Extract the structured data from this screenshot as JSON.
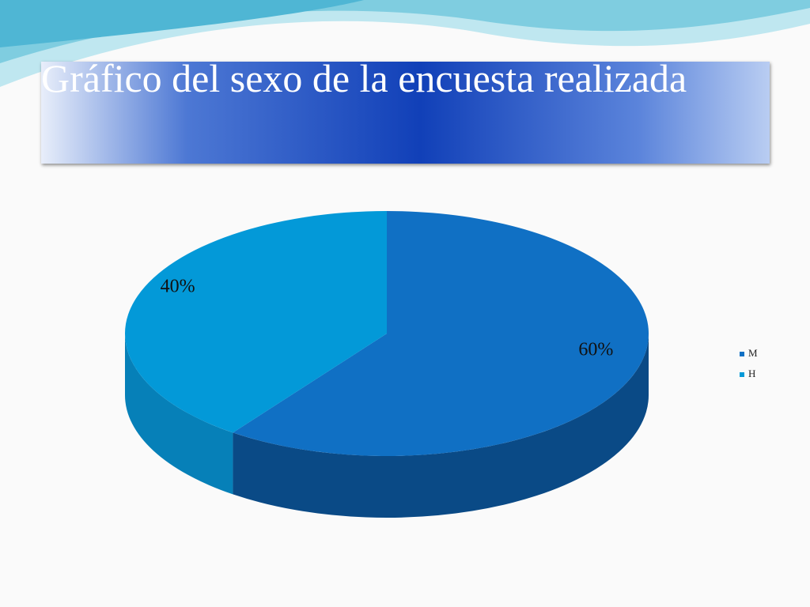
{
  "chart_data": {
    "type": "pie3d",
    "title": "Gráfico del sexo de la encuesta realizada",
    "categories": [
      "M",
      "H"
    ],
    "values": [
      60,
      40
    ],
    "value_labels": [
      "60%",
      "40%"
    ],
    "colors": [
      "#1070c4",
      "#0399d8"
    ],
    "side_colors": [
      "#0a4a86",
      "#0680b8"
    ],
    "legend": "right"
  }
}
